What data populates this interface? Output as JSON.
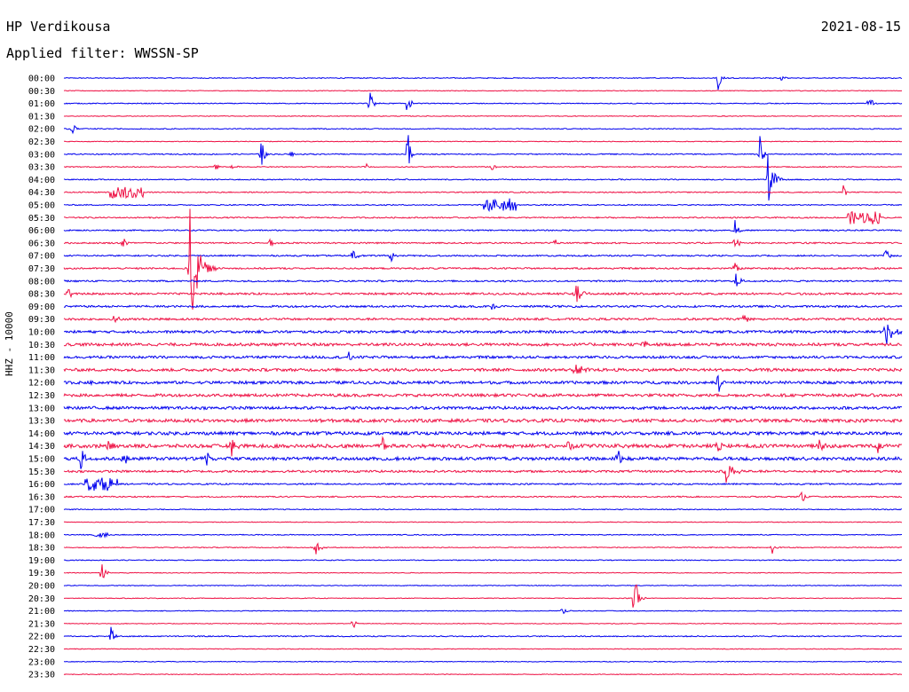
{
  "header": {
    "station": "HP Verdikousa",
    "date": "2021-08-15",
    "filter": "Applied filter: WWSSN-SP"
  },
  "axis_label": "HHZ - 10000",
  "colors": {
    "even": "#0000ee",
    "odd": "#ee1144"
  },
  "chart_data": {
    "type": "line",
    "title": "HP Verdikousa",
    "subtitle": "Applied filter: WWSSN-SP",
    "ylabel": "HHZ - 10000",
    "row_labels": [
      "00:00",
      "00:30",
      "01:00",
      "01:30",
      "02:00",
      "02:30",
      "03:00",
      "03:30",
      "04:00",
      "04:30",
      "05:00",
      "05:30",
      "06:00",
      "06:30",
      "07:00",
      "07:30",
      "08:00",
      "08:30",
      "09:00",
      "09:30",
      "10:00",
      "10:30",
      "11:00",
      "11:30",
      "12:00",
      "12:30",
      "13:00",
      "13:30",
      "14:00",
      "14:30",
      "15:00",
      "15:30",
      "16:00",
      "16:30",
      "17:00",
      "17:30",
      "18:00",
      "18:30",
      "19:00",
      "19:30",
      "20:00",
      "20:30",
      "21:00",
      "21:30",
      "22:00",
      "22:30",
      "23:00",
      "23:30"
    ],
    "x_minutes": [
      0,
      30
    ],
    "noise": [
      0.5,
      0.4,
      0.5,
      0.4,
      0.5,
      0.4,
      0.6,
      0.5,
      0.6,
      0.6,
      0.6,
      0.7,
      0.7,
      0.8,
      0.8,
      0.9,
      0.9,
      1.1,
      1.1,
      1.2,
      1.4,
      1.6,
      1.4,
      1.6,
      1.6,
      1.6,
      1.6,
      1.8,
      1.8,
      2.0,
      1.8,
      1.2,
      0.8,
      0.7,
      0.5,
      0.4,
      0.5,
      0.5,
      0.5,
      0.4,
      0.4,
      0.4,
      0.4,
      0.4,
      0.6,
      0.4,
      0.4,
      0.4
    ],
    "events": [
      {
        "row": 0,
        "t": 0.78,
        "amp": 18,
        "w": 0.003
      },
      {
        "row": 0,
        "t": 0.855,
        "amp": 4,
        "w": 0.003
      },
      {
        "row": 2,
        "t": 0.365,
        "amp": 18,
        "w": 0.003
      },
      {
        "row": 2,
        "t": 0.41,
        "amp": 36,
        "w": 0.002
      },
      {
        "row": 2,
        "t": 0.96,
        "amp": 10,
        "w": 0.004
      },
      {
        "row": 4,
        "t": 0.01,
        "amp": 8,
        "w": 0.003
      },
      {
        "row": 6,
        "t": 0.235,
        "amp": 22,
        "w": 0.003
      },
      {
        "row": 6,
        "t": 0.27,
        "amp": 6,
        "w": 0.003
      },
      {
        "row": 6,
        "t": 0.41,
        "amp": 45,
        "w": 0.002
      },
      {
        "row": 6,
        "t": 0.83,
        "amp": 32,
        "w": 0.003
      },
      {
        "row": 7,
        "t": 0.18,
        "amp": 7,
        "w": 0.003
      },
      {
        "row": 7,
        "t": 0.2,
        "amp": 7,
        "w": 0.003
      },
      {
        "row": 7,
        "t": 0.36,
        "amp": 6,
        "w": 0.003
      },
      {
        "row": 7,
        "t": 0.51,
        "amp": 8,
        "w": 0.003
      },
      {
        "row": 8,
        "t": 0.84,
        "amp": 30,
        "w": 0.006
      },
      {
        "row": 9,
        "t": 0.075,
        "amp": 7,
        "w": 0.02,
        "burst": true
      },
      {
        "row": 9,
        "t": 0.93,
        "amp": 8,
        "w": 0.003
      },
      {
        "row": 10,
        "t": 0.52,
        "amp": 7,
        "w": 0.02,
        "burst": true
      },
      {
        "row": 11,
        "t": 0.955,
        "amp": 7,
        "w": 0.02,
        "burst": true
      },
      {
        "row": 12,
        "t": 0.8,
        "amp": 18,
        "w": 0.003
      },
      {
        "row": 13,
        "t": 0.07,
        "amp": 10,
        "w": 0.003
      },
      {
        "row": 13,
        "t": 0.245,
        "amp": 9,
        "w": 0.003
      },
      {
        "row": 13,
        "t": 0.585,
        "amp": 8,
        "w": 0.003
      },
      {
        "row": 13,
        "t": 0.8,
        "amp": 14,
        "w": 0.004
      },
      {
        "row": 14,
        "t": 0.345,
        "amp": 12,
        "w": 0.003
      },
      {
        "row": 14,
        "t": 0.39,
        "amp": 10,
        "w": 0.003
      },
      {
        "row": 14,
        "t": 0.98,
        "amp": 16,
        "w": 0.003
      },
      {
        "row": 15,
        "t": 0.15,
        "amp": 80,
        "w": 0.008
      },
      {
        "row": 15,
        "t": 0.8,
        "amp": 12,
        "w": 0.003
      },
      {
        "row": 16,
        "t": 0.8,
        "amp": 14,
        "w": 0.004
      },
      {
        "row": 17,
        "t": 0.005,
        "amp": 8,
        "w": 0.003
      },
      {
        "row": 17,
        "t": 0.61,
        "amp": 14,
        "w": 0.008
      },
      {
        "row": 18,
        "t": 0.51,
        "amp": 8,
        "w": 0.003
      },
      {
        "row": 19,
        "t": 0.06,
        "amp": 9,
        "w": 0.003
      },
      {
        "row": 19,
        "t": 0.81,
        "amp": 8,
        "w": 0.004
      },
      {
        "row": 20,
        "t": 0.98,
        "amp": 30,
        "w": 0.006
      },
      {
        "row": 21,
        "t": 0.69,
        "amp": 10,
        "w": 0.003
      },
      {
        "row": 22,
        "t": 0.34,
        "amp": 8,
        "w": 0.003
      },
      {
        "row": 23,
        "t": 0.61,
        "amp": 8,
        "w": 0.008
      },
      {
        "row": 24,
        "t": 0.025,
        "amp": 8,
        "w": 0.003
      },
      {
        "row": 24,
        "t": 0.78,
        "amp": 18,
        "w": 0.004
      },
      {
        "row": 29,
        "t": 0.05,
        "amp": 12,
        "w": 0.004
      },
      {
        "row": 29,
        "t": 0.2,
        "amp": 12,
        "w": 0.004
      },
      {
        "row": 29,
        "t": 0.38,
        "amp": 12,
        "w": 0.004
      },
      {
        "row": 29,
        "t": 0.6,
        "amp": 12,
        "w": 0.004
      },
      {
        "row": 29,
        "t": 0.78,
        "amp": 14,
        "w": 0.004
      },
      {
        "row": 29,
        "t": 0.9,
        "amp": 14,
        "w": 0.004
      },
      {
        "row": 29,
        "t": 0.97,
        "amp": 16,
        "w": 0.004
      },
      {
        "row": 30,
        "t": 0.02,
        "amp": 14,
        "w": 0.004
      },
      {
        "row": 30,
        "t": 0.07,
        "amp": 10,
        "w": 0.004
      },
      {
        "row": 30,
        "t": 0.17,
        "amp": 10,
        "w": 0.004
      },
      {
        "row": 30,
        "t": 0.66,
        "amp": 16,
        "w": 0.004
      },
      {
        "row": 31,
        "t": 0.79,
        "amp": 14,
        "w": 0.008
      },
      {
        "row": 32,
        "t": 0.045,
        "amp": 7,
        "w": 0.02,
        "burst": true
      },
      {
        "row": 33,
        "t": 0.88,
        "amp": 8,
        "w": 0.004
      },
      {
        "row": 36,
        "t": 0.045,
        "amp": 3,
        "w": 0.01,
        "burst": true
      },
      {
        "row": 37,
        "t": 0.3,
        "amp": 24,
        "w": 0.003
      },
      {
        "row": 37,
        "t": 0.845,
        "amp": 8,
        "w": 0.003
      },
      {
        "row": 39,
        "t": 0.045,
        "amp": 20,
        "w": 0.003
      },
      {
        "row": 41,
        "t": 0.68,
        "amp": 80,
        "w": 0.003
      },
      {
        "row": 42,
        "t": 0.595,
        "amp": 8,
        "w": 0.003
      },
      {
        "row": 43,
        "t": 0.345,
        "amp": 8,
        "w": 0.003
      },
      {
        "row": 44,
        "t": 0.055,
        "amp": 18,
        "w": 0.003
      }
    ]
  }
}
